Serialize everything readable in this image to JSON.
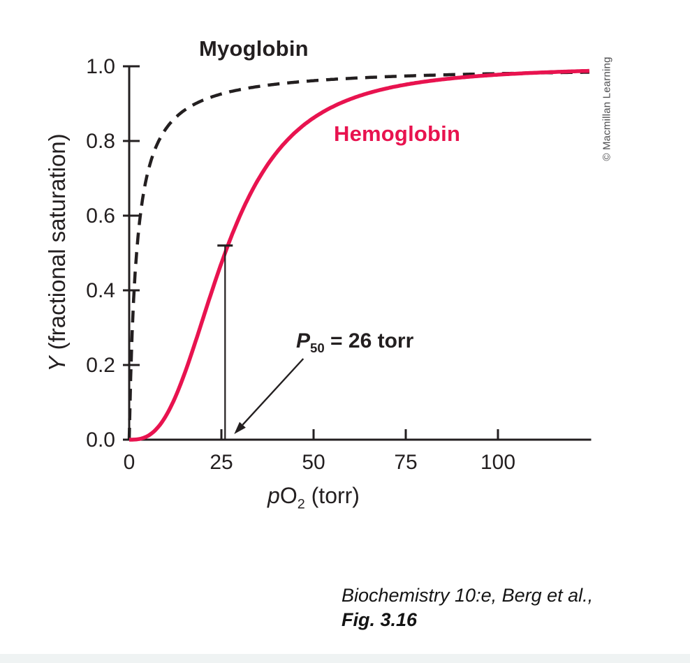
{
  "figure": {
    "credit": "© Macmillan Learning",
    "caption": {
      "line1": "Biochemistry 10:e, Berg et al.,",
      "line2": "Fig. 3.16"
    }
  },
  "axis": {
    "y": {
      "italic": "Y",
      "rest": " (fractional saturation)"
    },
    "x": {
      "italic": "p",
      "main": "O",
      "sub": "2",
      "rest": " (torr)"
    }
  },
  "chart_data": {
    "type": "line",
    "title": "",
    "xlabel": "pO2 (torr)",
    "ylabel": "Y (fractional saturation)",
    "xlim": [
      0,
      125
    ],
    "ylim": [
      0,
      1.0
    ],
    "x_ticks": [
      0,
      25,
      50,
      75,
      100
    ],
    "y_tick_labels": [
      "0.0",
      "0.2",
      "0.4",
      "0.6",
      "0.8",
      "1.0"
    ],
    "grid": false,
    "legend_position": "inline-curve-labels",
    "axis_color": "#231f20",
    "series": [
      {
        "name": "Myoglobin",
        "color": "#231f20",
        "style": "dashed",
        "model": "hyperbolic",
        "p50_torr": 2,
        "points": {
          "x": [
            0,
            1,
            2,
            5,
            10,
            20,
            40,
            60,
            100,
            120
          ],
          "y": [
            0,
            0.33,
            0.5,
            0.71,
            0.83,
            0.91,
            0.95,
            0.97,
            0.98,
            0.984
          ]
        }
      },
      {
        "name": "Hemoglobin",
        "color": "#e8134f",
        "style": "solid",
        "model": "hill",
        "p50_torr": 26,
        "hill_coefficient": 2.8,
        "points": {
          "x": [
            0,
            5,
            10,
            15,
            20,
            25,
            26,
            30,
            35,
            40,
            50,
            60,
            75,
            100,
            120
          ],
          "y": [
            0,
            0.01,
            0.06,
            0.18,
            0.33,
            0.47,
            0.5,
            0.6,
            0.7,
            0.77,
            0.86,
            0.91,
            0.95,
            0.98,
            0.99
          ]
        }
      }
    ],
    "annotation": {
      "label": {
        "italic": "P",
        "sub": "50",
        "rest": " = 26 torr"
      },
      "p50_torr": 26,
      "y_at_p50": 0.5,
      "marker_top_y": 0.52
    }
  }
}
